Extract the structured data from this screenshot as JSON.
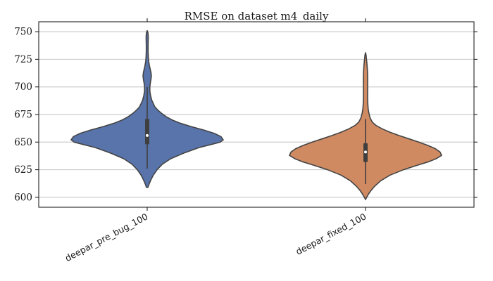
{
  "chart_data": {
    "type": "violin",
    "title": "RMSE on dataset m4_daily",
    "xlabel": "",
    "ylabel": "",
    "ylim": [
      591,
      759
    ],
    "yticks": [
      600,
      625,
      650,
      675,
      700,
      725,
      750
    ],
    "grid": true,
    "categories": [
      "deepar_pre_bug_100",
      "deepar_fixed_100"
    ],
    "series": [
      {
        "category": "deepar_pre_bug_100",
        "color": "#5874ab",
        "min": 626,
        "q1": 648,
        "median": 656,
        "q3": 671,
        "max": 700,
        "density": [
          [
            609,
            0.01
          ],
          [
            612,
            0.025
          ],
          [
            616,
            0.05
          ],
          [
            620,
            0.08
          ],
          [
            625,
            0.13
          ],
          [
            630,
            0.2
          ],
          [
            635,
            0.31
          ],
          [
            640,
            0.48
          ],
          [
            645,
            0.68
          ],
          [
            648,
            0.85
          ],
          [
            650,
            0.96
          ],
          [
            652,
            1.0
          ],
          [
            655,
            0.97
          ],
          [
            658,
            0.88
          ],
          [
            661,
            0.74
          ],
          [
            664,
            0.58
          ],
          [
            667,
            0.44
          ],
          [
            670,
            0.33
          ],
          [
            673,
            0.25
          ],
          [
            676,
            0.19
          ],
          [
            679,
            0.14
          ],
          [
            682,
            0.1
          ],
          [
            685,
            0.08
          ],
          [
            688,
            0.06
          ],
          [
            692,
            0.045
          ],
          [
            696,
            0.035
          ],
          [
            700,
            0.035
          ],
          [
            703,
            0.04
          ],
          [
            707,
            0.05
          ],
          [
            710,
            0.055
          ],
          [
            713,
            0.05
          ],
          [
            716,
            0.04
          ],
          [
            719,
            0.03
          ],
          [
            723,
            0.02
          ],
          [
            727,
            0.015
          ],
          [
            732,
            0.012
          ],
          [
            738,
            0.012
          ],
          [
            743,
            0.014
          ],
          [
            746,
            0.014
          ],
          [
            749,
            0.01
          ],
          [
            751,
            0.0
          ]
        ]
      },
      {
        "category": "deepar_fixed_100",
        "color": "#d08a62",
        "min": 612,
        "q1": 632,
        "median": 641,
        "q3": 649,
        "max": 671,
        "density": [
          [
            598,
            0.0
          ],
          [
            600,
            0.015
          ],
          [
            603,
            0.04
          ],
          [
            606,
            0.07
          ],
          [
            610,
            0.12
          ],
          [
            615,
            0.2
          ],
          [
            620,
            0.32
          ],
          [
            625,
            0.5
          ],
          [
            629,
            0.68
          ],
          [
            632,
            0.82
          ],
          [
            635,
            0.93
          ],
          [
            638,
            1.0
          ],
          [
            641,
            0.98
          ],
          [
            644,
            0.92
          ],
          [
            647,
            0.82
          ],
          [
            650,
            0.7
          ],
          [
            653,
            0.57
          ],
          [
            656,
            0.44
          ],
          [
            659,
            0.32
          ],
          [
            662,
            0.22
          ],
          [
            665,
            0.14
          ],
          [
            668,
            0.09
          ],
          [
            672,
            0.06
          ],
          [
            676,
            0.045
          ],
          [
            680,
            0.035
          ],
          [
            685,
            0.03
          ],
          [
            690,
            0.028
          ],
          [
            695,
            0.028
          ],
          [
            700,
            0.028
          ],
          [
            705,
            0.028
          ],
          [
            710,
            0.028
          ],
          [
            715,
            0.025
          ],
          [
            720,
            0.02
          ],
          [
            725,
            0.013
          ],
          [
            729,
            0.007
          ],
          [
            731,
            0.0
          ]
        ]
      }
    ]
  }
}
